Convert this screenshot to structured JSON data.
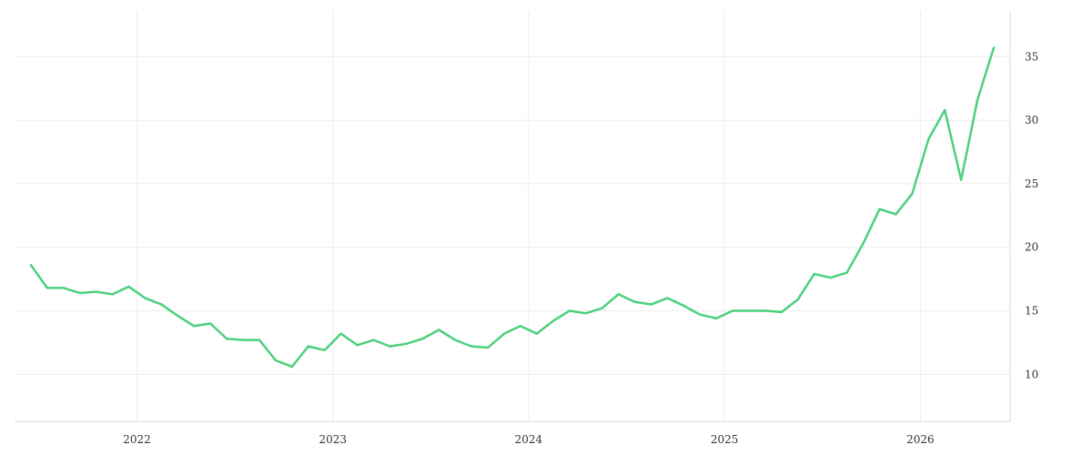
{
  "chart_data": {
    "type": "line",
    "title": "",
    "xlabel": "",
    "ylabel": "",
    "x_tick_labels": [
      "2022",
      "2023",
      "2024",
      "2025",
      "2026"
    ],
    "y_tick_labels": [
      "10",
      "15",
      "20",
      "25",
      "30",
      "35"
    ],
    "y_ticks": [
      10,
      15,
      20,
      25,
      30,
      35
    ],
    "xlim": [
      "2021-05",
      "2026-06"
    ],
    "ylim": [
      6.3,
      38.6
    ],
    "grid": true,
    "legend": "none",
    "series": [
      {
        "color": "#4cd07d",
        "points": [
          [
            "2021-06",
            18.6
          ],
          [
            "2021-07",
            16.8
          ],
          [
            "2021-08",
            16.8
          ],
          [
            "2021-09",
            16.4
          ],
          [
            "2021-10",
            16.5
          ],
          [
            "2021-11",
            16.3
          ],
          [
            "2021-12",
            16.9
          ],
          [
            "2022-01",
            16.0
          ],
          [
            "2022-02",
            15.5
          ],
          [
            "2022-03",
            14.6
          ],
          [
            "2022-04",
            13.8
          ],
          [
            "2022-05",
            14.0
          ],
          [
            "2022-06",
            12.8
          ],
          [
            "2022-07",
            12.7
          ],
          [
            "2022-08",
            12.7
          ],
          [
            "2022-09",
            11.1
          ],
          [
            "2022-10",
            10.6
          ],
          [
            "2022-11",
            12.2
          ],
          [
            "2022-12",
            11.9
          ],
          [
            "2023-01",
            13.2
          ],
          [
            "2023-02",
            12.3
          ],
          [
            "2023-03",
            12.7
          ],
          [
            "2023-04",
            12.2
          ],
          [
            "2023-05",
            12.4
          ],
          [
            "2023-06",
            12.8
          ],
          [
            "2023-07",
            13.5
          ],
          [
            "2023-08",
            12.7
          ],
          [
            "2023-09",
            12.2
          ],
          [
            "2023-10",
            12.1
          ],
          [
            "2023-11",
            13.2
          ],
          [
            "2023-12",
            13.8
          ],
          [
            "2024-01",
            13.2
          ],
          [
            "2024-02",
            14.2
          ],
          [
            "2024-03",
            15.0
          ],
          [
            "2024-04",
            14.8
          ],
          [
            "2024-05",
            15.2
          ],
          [
            "2024-06",
            16.3
          ],
          [
            "2024-07",
            15.7
          ],
          [
            "2024-08",
            15.5
          ],
          [
            "2024-09",
            16.0
          ],
          [
            "2024-10",
            15.4
          ],
          [
            "2024-11",
            14.7
          ],
          [
            "2024-12",
            14.4
          ],
          [
            "2025-01",
            15.0
          ],
          [
            "2025-02",
            15.0
          ],
          [
            "2025-03",
            15.0
          ],
          [
            "2025-04",
            14.9
          ],
          [
            "2025-05",
            15.9
          ],
          [
            "2025-06",
            17.9
          ],
          [
            "2025-07",
            17.6
          ],
          [
            "2025-08",
            18.0
          ],
          [
            "2025-09",
            20.3
          ],
          [
            "2025-10",
            23.0
          ],
          [
            "2025-11",
            22.6
          ],
          [
            "2025-12",
            24.2
          ],
          [
            "2026-01",
            28.5
          ],
          [
            "2026-02",
            30.8
          ],
          [
            "2026-03",
            25.3
          ],
          [
            "2026-04",
            31.6
          ],
          [
            "2026-05",
            35.7
          ]
        ]
      }
    ]
  }
}
